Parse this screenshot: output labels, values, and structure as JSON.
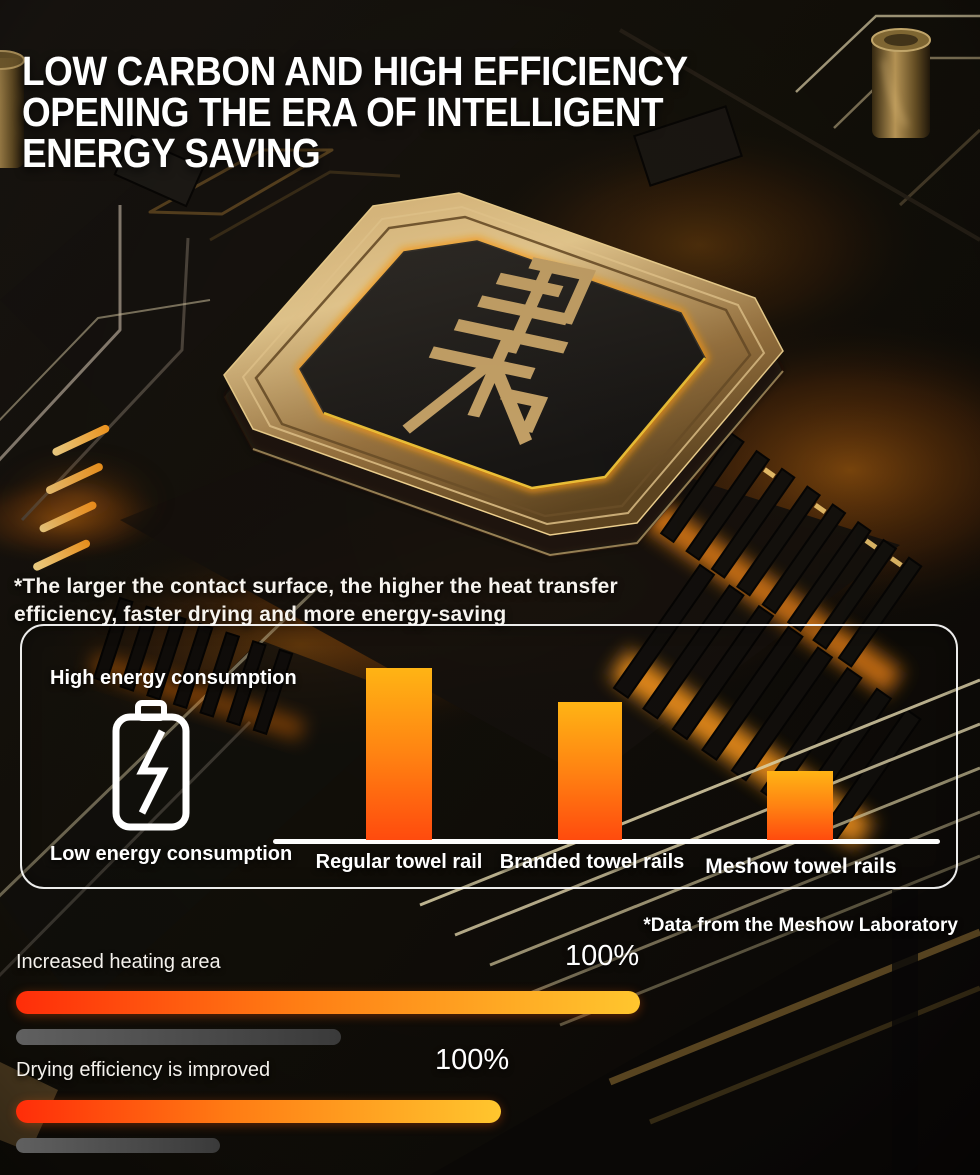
{
  "header": {
    "title": "LOW CARBON AND HIGH EFFICIENCY\nOPENING THE ERA OF INTELLIGENT\nENERGY SAVING"
  },
  "footnote": "*The larger the contact surface, the higher the heat transfer\nefficiency, faster drying and more energy-saving",
  "energy_chart": {
    "high_label": "High energy consumption",
    "low_label": "Low energy consumption",
    "data_note": "*Data from the Meshow Laboratory",
    "bars": [
      {
        "label": "Regular towel rail"
      },
      {
        "label": "Branded towel rails"
      },
      {
        "label": "Meshow towel rails"
      }
    ]
  },
  "progress_rows": [
    {
      "label": "Increased heating area",
      "value": "100%"
    },
    {
      "label": "Drying efficiency is improved",
      "value": "100%"
    }
  ],
  "chart_data": {
    "type": "bar",
    "title": "Energy consumption comparison of towel rails",
    "categories": [
      "Regular towel rail",
      "Branded towel rails",
      "Meshow towel rails"
    ],
    "values": [
      100,
      80,
      40
    ],
    "value_unit": "relative energy consumption, % (estimated from bar heights)",
    "annotations": [
      "High energy consumption",
      "Low energy consumption",
      "*Data from the Meshow Laboratory"
    ],
    "ylabel": "",
    "xlabel": "",
    "ylim": [
      0,
      100
    ],
    "grid": false,
    "legend": "none",
    "bar_gradient": [
      "#ffb414",
      "#ff4b0e"
    ],
    "related_metrics": [
      {
        "label": "Increased heating area",
        "value_pct": 100
      },
      {
        "label": "Drying efficiency is improved",
        "value_pct": 100
      }
    ]
  },
  "icons": {
    "battery": "battery-with-lightning-bolt",
    "chip_logo": "gold-cjk-style-monogram-on-cpu"
  },
  "colors": {
    "background": "#0e0c0a",
    "text": "#ffffff",
    "bar_top": "#ffb414",
    "bar_bottom": "#ff4b0e",
    "progress_left": "#ff2d09",
    "progress_right": "#ffc62e",
    "track_gray": "#4a4a4a",
    "gold": "#c9a25f",
    "glow_orange": "#ff8c14"
  }
}
